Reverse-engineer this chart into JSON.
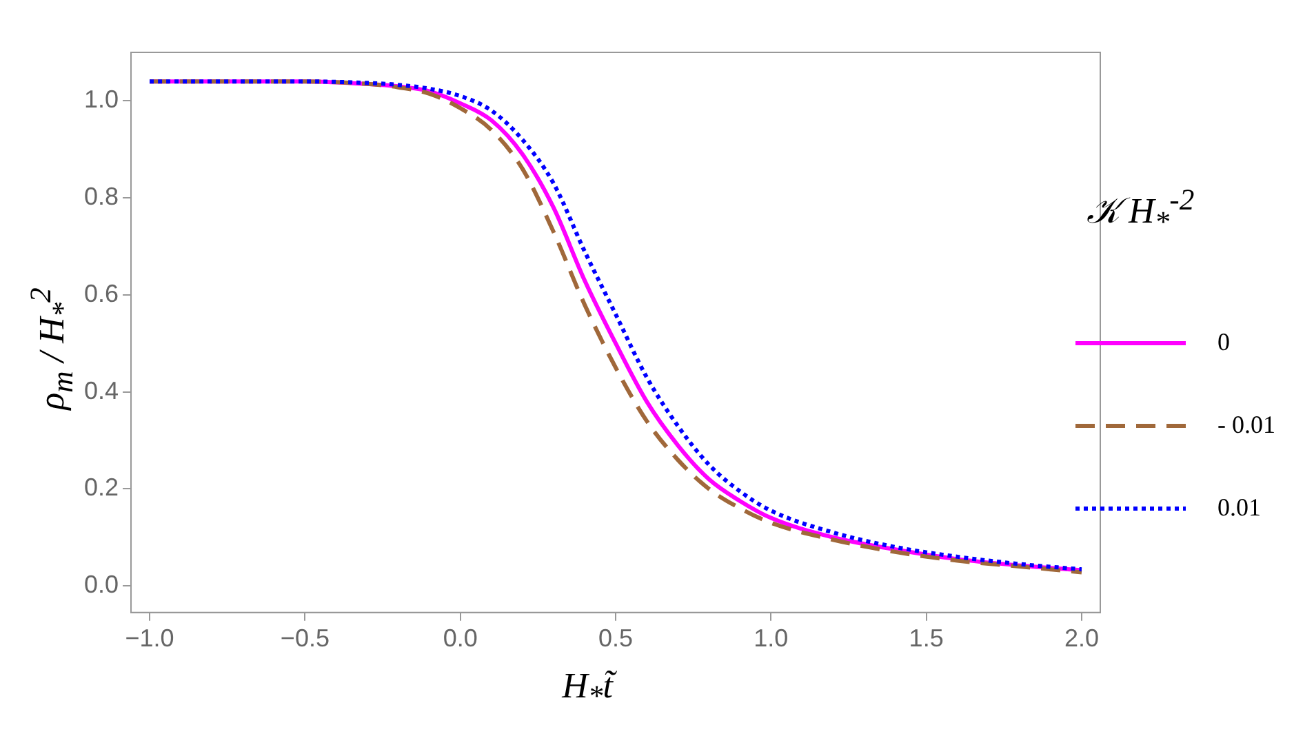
{
  "chart_data": {
    "type": "line",
    "xlabel": "H$_{*}$t̃",
    "ylabel": "ρ$_{m}$ / H$_{*}$$^{2}$",
    "legend_title": "𝒦 H$_{*}$$^{-2}$",
    "x": [
      -1,
      -0.5,
      -0.3,
      -0.2,
      -0.1,
      0,
      0.1,
      0.2,
      0.3,
      0.4,
      0.5,
      0.6,
      0.7,
      0.8,
      0.9,
      1.0,
      1.2,
      1.4,
      1.6,
      1.8,
      2.0
    ],
    "series": [
      {
        "name": "0",
        "color": "#ff00ff",
        "line_style": "solid",
        "values": [
          1.04,
          1.04,
          1.035,
          1.03,
          1.02,
          0.995,
          0.96,
          0.89,
          0.78,
          0.63,
          0.5,
          0.38,
          0.29,
          0.22,
          0.175,
          0.14,
          0.1,
          0.075,
          0.055,
          0.042,
          0.032
        ]
      },
      {
        "name": "- 0.01",
        "color": "#a0683a",
        "line_style": "dashed",
        "values": [
          1.04,
          1.04,
          1.035,
          1.028,
          1.015,
          0.985,
          0.94,
          0.86,
          0.73,
          0.58,
          0.45,
          0.34,
          0.26,
          0.2,
          0.16,
          0.13,
          0.095,
          0.07,
          0.052,
          0.04,
          0.028
        ]
      },
      {
        "name": "0.01",
        "color": "#0000ff",
        "line_style": "dotted",
        "values": [
          1.04,
          1.04,
          1.037,
          1.033,
          1.025,
          1.01,
          0.98,
          0.92,
          0.83,
          0.69,
          0.56,
          0.43,
          0.33,
          0.25,
          0.195,
          0.155,
          0.11,
          0.08,
          0.06,
          0.045,
          0.034
        ]
      }
    ],
    "xlim": [
      -1.06,
      2.06
    ],
    "ylim": [
      -0.055,
      1.1
    ],
    "xticks": [
      {
        "value": -1,
        "label": "−1.0"
      },
      {
        "value": -0.5,
        "label": "−0.5"
      },
      {
        "value": 0,
        "label": "0.0"
      },
      {
        "value": 0.5,
        "label": "0.5"
      },
      {
        "value": 1,
        "label": "1.0"
      },
      {
        "value": 1.5,
        "label": "1.5"
      },
      {
        "value": 2,
        "label": "2.0"
      }
    ],
    "yticks": [
      {
        "value": 0,
        "label": "0.0"
      },
      {
        "value": 0.2,
        "label": "0.2"
      },
      {
        "value": 0.4,
        "label": "0.4"
      },
      {
        "value": 0.6,
        "label": "0.6"
      },
      {
        "value": 0.8,
        "label": "0.8"
      },
      {
        "value": 1,
        "label": "1.0"
      }
    ],
    "grid": false,
    "legend": "right",
    "marker": "none"
  }
}
